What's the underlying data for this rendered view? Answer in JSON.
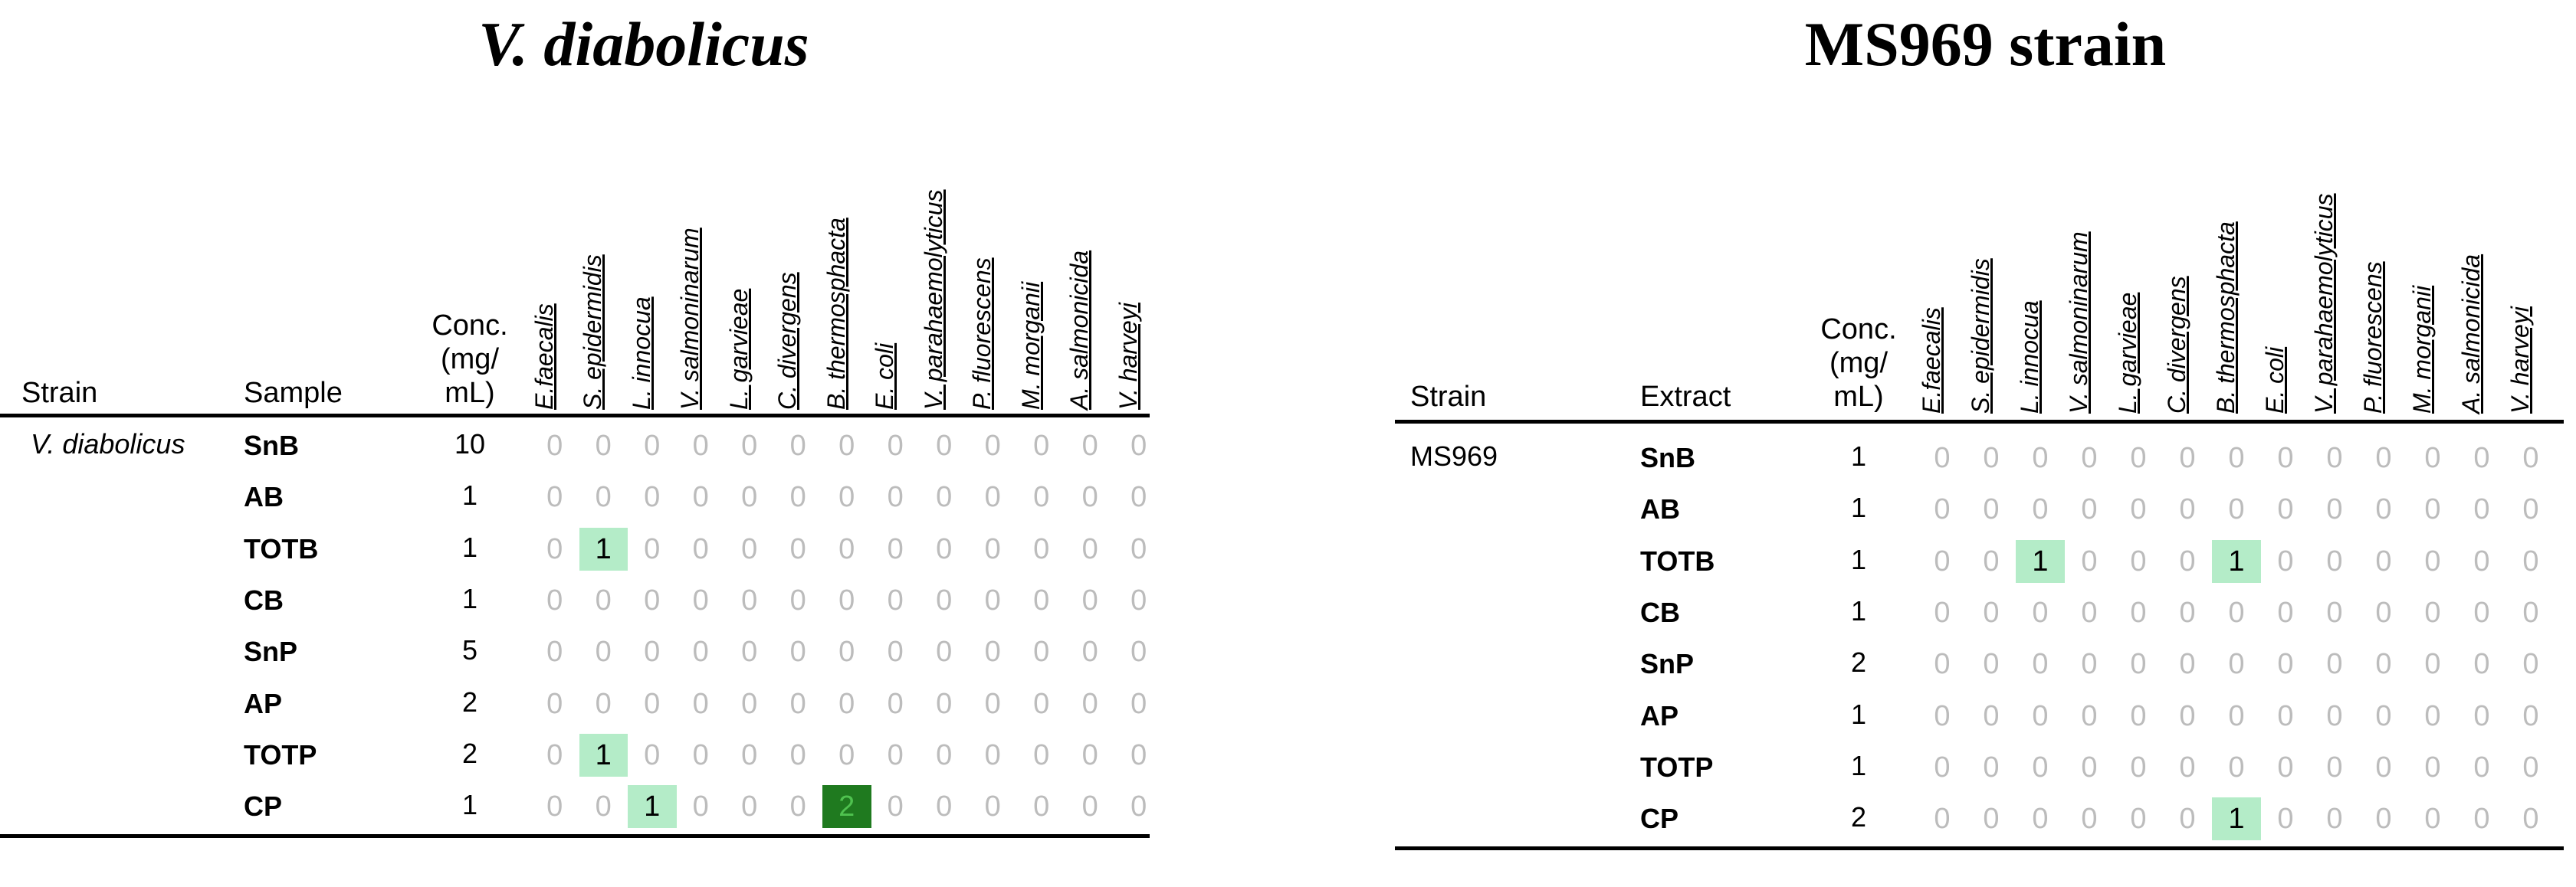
{
  "colors": {
    "level1_bg": "#b4ecc8",
    "level2_bg": "#1f7a1f",
    "zero_text": "#bcbcbc"
  },
  "panels": [
    {
      "title": "V. diabolicus",
      "headers": {
        "strain": "Strain",
        "sample": "Sample",
        "conc": [
          "Conc.",
          "(mg/",
          "mL)"
        ]
      },
      "strain_label": "V. diabolicus",
      "species": [
        "E.faecalis",
        "S. epidermidis",
        "L. innocua",
        "V. salmoninarum",
        "L. garvieae",
        "C. divergens",
        "B. thermosphacta",
        "E. coli",
        "V. parahaemolyticus",
        "P. fluorescens",
        "M. morganii",
        "A. salmonicida",
        "V. harveyi"
      ],
      "rows": [
        {
          "sample": "SnB",
          "conc": "10",
          "values": [
            0,
            0,
            0,
            0,
            0,
            0,
            0,
            0,
            0,
            0,
            0,
            0,
            0
          ]
        },
        {
          "sample": "AB",
          "conc": "1",
          "values": [
            0,
            0,
            0,
            0,
            0,
            0,
            0,
            0,
            0,
            0,
            0,
            0,
            0
          ]
        },
        {
          "sample": "TOTB",
          "conc": "1",
          "values": [
            0,
            1,
            0,
            0,
            0,
            0,
            0,
            0,
            0,
            0,
            0,
            0,
            0
          ]
        },
        {
          "sample": "CB",
          "conc": "1",
          "values": [
            0,
            0,
            0,
            0,
            0,
            0,
            0,
            0,
            0,
            0,
            0,
            0,
            0
          ]
        },
        {
          "sample": "SnP",
          "conc": "5",
          "values": [
            0,
            0,
            0,
            0,
            0,
            0,
            0,
            0,
            0,
            0,
            0,
            0,
            0
          ]
        },
        {
          "sample": "AP",
          "conc": "2",
          "values": [
            0,
            0,
            0,
            0,
            0,
            0,
            0,
            0,
            0,
            0,
            0,
            0,
            0
          ]
        },
        {
          "sample": "TOTP",
          "conc": "2",
          "values": [
            0,
            1,
            0,
            0,
            0,
            0,
            0,
            0,
            0,
            0,
            0,
            0,
            0
          ]
        },
        {
          "sample": "CP",
          "conc": "1",
          "values": [
            0,
            0,
            1,
            0,
            0,
            0,
            2,
            0,
            0,
            0,
            0,
            0,
            0
          ]
        }
      ]
    },
    {
      "title": "MS969 strain",
      "headers": {
        "strain": "Strain",
        "sample": "Extract",
        "conc": [
          "Conc.",
          "(mg/",
          "mL)"
        ]
      },
      "strain_label": "MS969",
      "species": [
        "E.faecalis",
        "S. epidermidis",
        "L. innocua",
        "V. salmoninarum",
        "L. garvieae",
        "C. divergens",
        "B. thermosphacta",
        "E. coli",
        "V. parahaemolyticus",
        "P. fluorescens",
        "M. morganii",
        "A. salmonicida",
        "V. harveyi"
      ],
      "rows": [
        {
          "sample": "SnB",
          "conc": "1",
          "values": [
            0,
            0,
            0,
            0,
            0,
            0,
            0,
            0,
            0,
            0,
            0,
            0,
            0
          ]
        },
        {
          "sample": "AB",
          "conc": "1",
          "values": [
            0,
            0,
            0,
            0,
            0,
            0,
            0,
            0,
            0,
            0,
            0,
            0,
            0
          ]
        },
        {
          "sample": "TOTB",
          "conc": "1",
          "values": [
            0,
            0,
            1,
            0,
            0,
            0,
            1,
            0,
            0,
            0,
            0,
            0,
            0
          ]
        },
        {
          "sample": "CB",
          "conc": "1",
          "values": [
            0,
            0,
            0,
            0,
            0,
            0,
            0,
            0,
            0,
            0,
            0,
            0,
            0
          ]
        },
        {
          "sample": "SnP",
          "conc": "2",
          "values": [
            0,
            0,
            0,
            0,
            0,
            0,
            0,
            0,
            0,
            0,
            0,
            0,
            0
          ]
        },
        {
          "sample": "AP",
          "conc": "1",
          "values": [
            0,
            0,
            0,
            0,
            0,
            0,
            0,
            0,
            0,
            0,
            0,
            0,
            0
          ]
        },
        {
          "sample": "TOTP",
          "conc": "1",
          "values": [
            0,
            0,
            0,
            0,
            0,
            0,
            0,
            0,
            0,
            0,
            0,
            0,
            0
          ]
        },
        {
          "sample": "CP",
          "conc": "2",
          "values": [
            0,
            0,
            0,
            0,
            0,
            0,
            1,
            0,
            0,
            0,
            0,
            0,
            0
          ]
        }
      ]
    }
  ]
}
